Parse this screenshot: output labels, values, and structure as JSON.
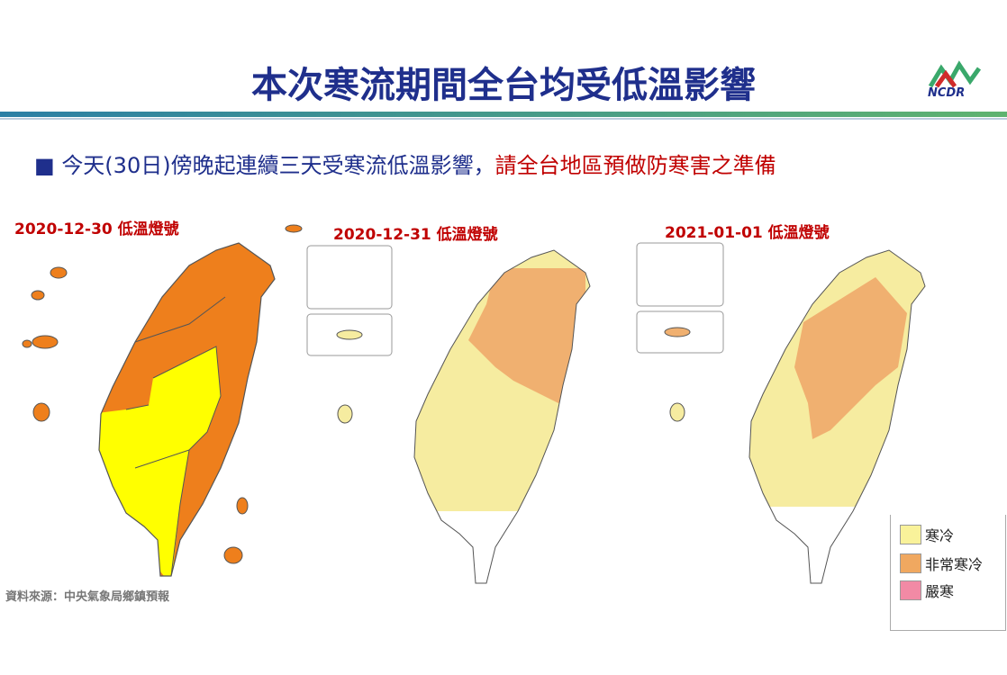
{
  "header": {
    "title": "本次寒流期間全台均受低溫影響",
    "logo": "NCDR"
  },
  "bullet": {
    "text": "今天(30日)傍晚起連續三天受寒流低溫影響，",
    "highlight": "請全台地區預做防寒害之準備"
  },
  "maps": [
    {
      "label": "2020-12-30 低溫燈號"
    },
    {
      "label": "2020-12-31 低溫燈號"
    },
    {
      "label": "2021-01-01 低溫燈號"
    }
  ],
  "legend": [
    "寒冷",
    "非常寒冷",
    "嚴寒"
  ],
  "source": "資料來源：中央氣象局鄉鎮預報"
}
